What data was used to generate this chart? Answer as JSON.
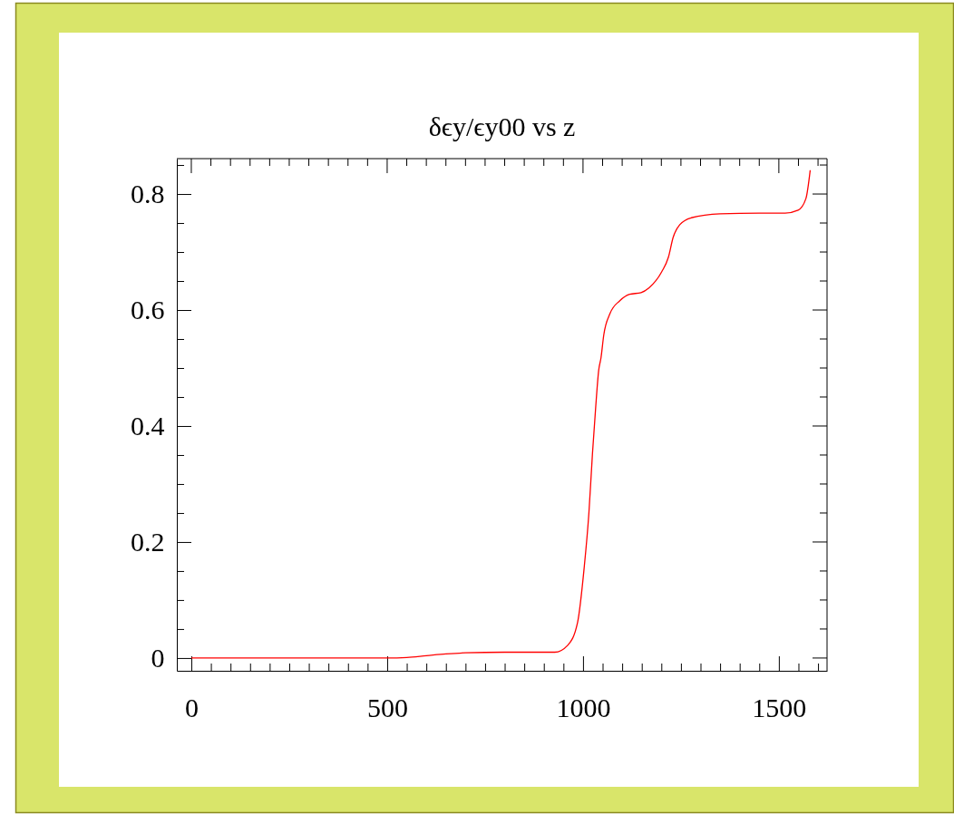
{
  "chart_data": {
    "type": "line",
    "title": "δϵy/ϵy00 vs z",
    "series": [
      {
        "color": "#ff0000",
        "x": [
          0,
          250,
          500,
          550,
          600,
          650,
          700,
          800,
          900,
          928,
          961,
          986,
          1003,
          1015,
          1024,
          1032,
          1040,
          1046,
          1053,
          1069,
          1094,
          1119,
          1148,
          1168,
          1201,
          1218,
          1230,
          1247,
          1276,
          1350,
          1450,
          1516,
          1549,
          1569,
          1580
        ],
        "values": [
          0,
          0,
          0,
          0.001,
          0.004,
          0.007,
          0.009,
          0.01,
          0.01,
          0.01,
          0.022,
          0.061,
          0.156,
          0.25,
          0.351,
          0.429,
          0.496,
          0.518,
          0.557,
          0.594,
          0.616,
          0.627,
          0.63,
          0.638,
          0.666,
          0.691,
          0.725,
          0.747,
          0.759,
          0.766,
          0.767,
          0.767,
          0.772,
          0.792,
          0.841
        ]
      }
    ],
    "xlim": [
      -37,
      1623
    ],
    "xticks": [
      0,
      {
        "value": 50,
        "label": null
      },
      {
        "value": 100,
        "label": null
      },
      {
        "value": 150,
        "label": null
      },
      {
        "value": 200,
        "label": null
      },
      {
        "value": 250,
        "label": null
      },
      {
        "value": 300,
        "label": null
      },
      {
        "value": 350,
        "label": null
      },
      {
        "value": 400,
        "label": null
      },
      {
        "value": 450,
        "label": null
      },
      500,
      {
        "value": 550,
        "label": null
      },
      {
        "value": 600,
        "label": null
      },
      {
        "value": 650,
        "label": null
      },
      {
        "value": 700,
        "label": null
      },
      {
        "value": 750,
        "label": null
      },
      {
        "value": 800,
        "label": null
      },
      {
        "value": 850,
        "label": null
      },
      {
        "value": 900,
        "label": null
      },
      {
        "value": 950,
        "label": null
      },
      1000,
      {
        "value": 1050,
        "label": null
      },
      {
        "value": 1100,
        "label": null
      },
      {
        "value": 1150,
        "label": null
      },
      {
        "value": 1200,
        "label": null
      },
      {
        "value": 1250,
        "label": null
      },
      {
        "value": 1300,
        "label": null
      },
      {
        "value": 1350,
        "label": null
      },
      {
        "value": 1400,
        "label": null
      },
      {
        "value": 1450,
        "label": null
      },
      1500,
      {
        "value": 1550,
        "label": null
      },
      {
        "value": 1600,
        "label": null
      }
    ],
    "ylim": [
      -0.022,
      0.861
    ],
    "yticks": [
      0,
      {
        "value": 0.05,
        "label": null
      },
      {
        "value": 0.1,
        "label": null
      },
      {
        "value": 0.15,
        "label": null
      },
      0.2,
      {
        "value": 0.25,
        "label": null
      },
      {
        "value": 0.3,
        "label": null
      },
      {
        "value": 0.35,
        "label": null
      },
      0.4,
      {
        "value": 0.45,
        "label": null
      },
      {
        "value": 0.5,
        "label": null
      },
      {
        "value": 0.55,
        "label": null
      },
      0.6,
      {
        "value": 0.65,
        "label": null
      },
      {
        "value": 0.7,
        "label": null
      },
      {
        "value": 0.75,
        "label": null
      },
      0.8,
      {
        "value": 0.85,
        "label": null
      }
    ],
    "line_style": "solid"
  }
}
